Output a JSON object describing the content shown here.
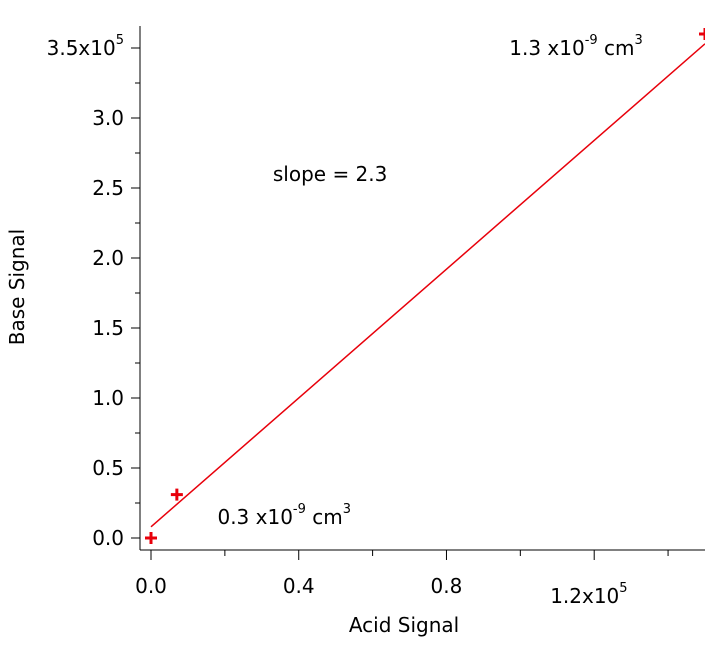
{
  "chart_data": {
    "type": "scatter",
    "xlabel": "Acid Signal",
    "ylabel": "Base Signal",
    "xlim": [
      0,
      150000
    ],
    "ylim": [
      0,
      355000
    ],
    "x_ticks": [
      {
        "value": 0,
        "label": "0.0"
      },
      {
        "value": 40000,
        "label": "0.4"
      },
      {
        "value": 80000,
        "label": "0.8"
      },
      {
        "value": 120000,
        "label": "1.2x10",
        "exp": "5"
      }
    ],
    "y_ticks": [
      {
        "value": 0,
        "label": "0.0"
      },
      {
        "value": 50000,
        "label": "0.5"
      },
      {
        "value": 100000,
        "label": "1.0"
      },
      {
        "value": 150000,
        "label": "1.5"
      },
      {
        "value": 200000,
        "label": "2.0"
      },
      {
        "value": 250000,
        "label": "2.5"
      },
      {
        "value": 300000,
        "label": "3.0"
      },
      {
        "value": 350000,
        "label": "3.5x10",
        "exp": "5"
      }
    ],
    "points": [
      {
        "x": 0,
        "y": 0
      },
      {
        "x": 7000,
        "y": 31000
      },
      {
        "x": 150000,
        "y": 360000
      }
    ],
    "fit_line": {
      "slope": 2.3,
      "intercept": 8000
    },
    "color": "#e8000b",
    "annotations": [
      {
        "text": "slope = 2.3",
        "x": 33000,
        "y": 255000
      },
      {
        "text": "0.3 x10",
        "exp": "-9",
        "after": " cm",
        "exp2": "3",
        "x": 18000,
        "y": 10000
      },
      {
        "text": "1.3 x10",
        "exp": "-9",
        "after": " cm",
        "exp2": "3",
        "x": 97000,
        "y": 345000
      }
    ]
  }
}
